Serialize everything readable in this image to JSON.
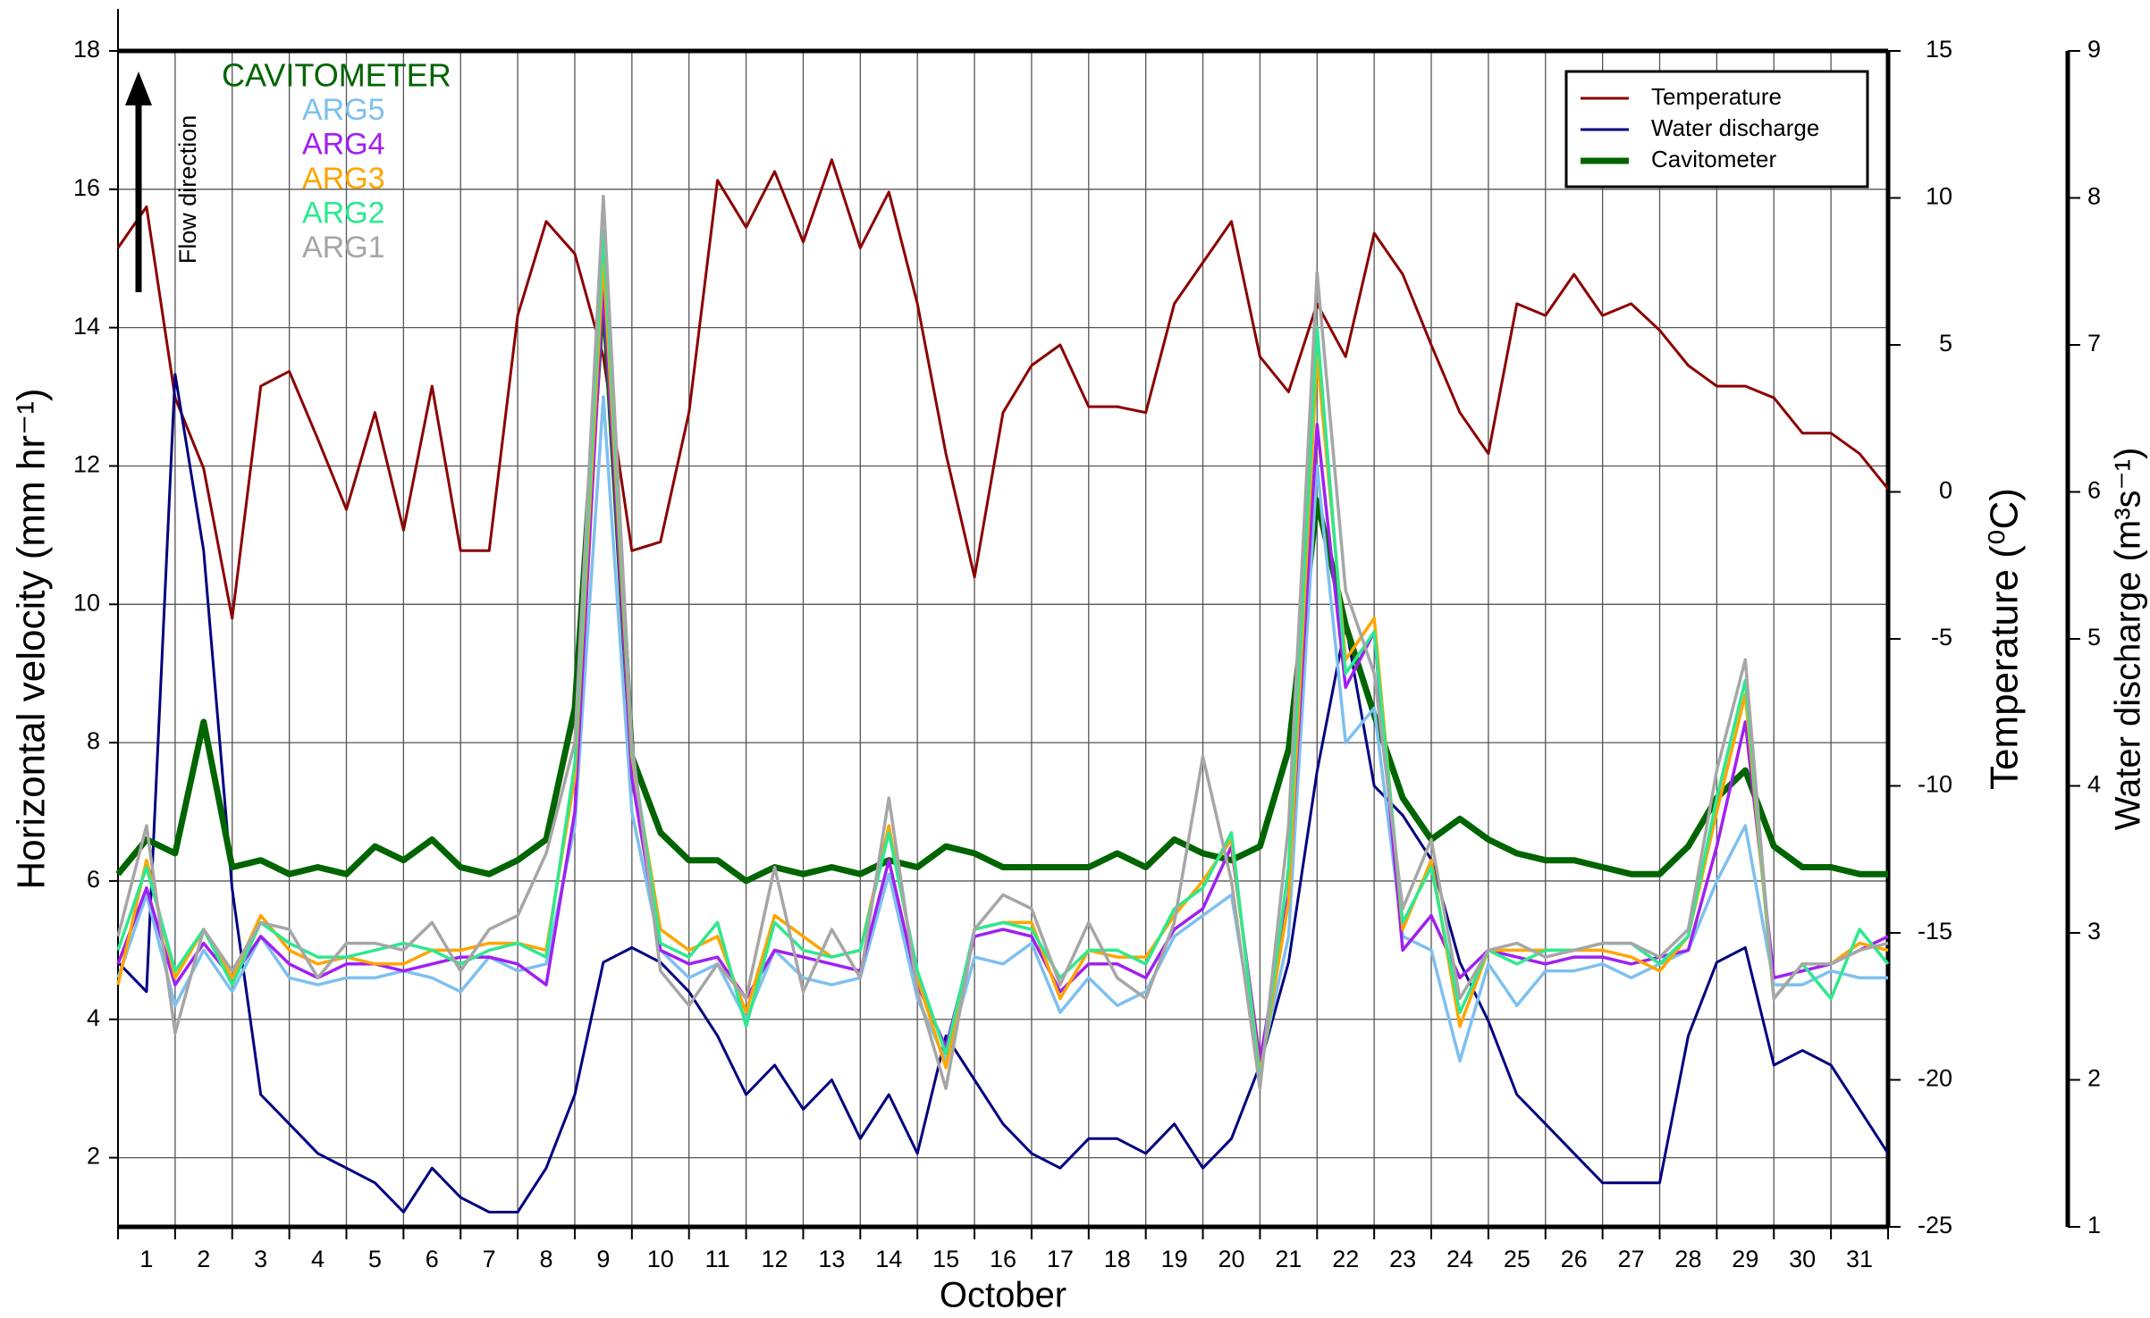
{
  "chart_data": {
    "type": "line",
    "x_label": "October",
    "y_label": "Horizontal velocity (mm hr⁻¹)",
    "y2_label": "Temperature (⁰C)",
    "y3_label": "Water discharge (m³s⁻¹)",
    "flow_label": "Flow direction",
    "label_series_title": "CAVITOMETER",
    "label_series_title_color": "#006400",
    "grid": true,
    "legend": "upper right",
    "xlim": [
      1,
      32
    ],
    "xgrid": [
      1,
      2,
      3,
      4,
      5,
      6,
      7,
      8,
      9,
      10,
      11,
      12,
      13,
      14,
      15,
      16,
      17,
      18,
      19,
      20,
      21,
      22,
      23,
      24,
      25,
      26,
      27,
      28,
      29,
      30,
      31,
      32
    ],
    "xticks": [
      {
        "value": 1.5,
        "label": "1"
      },
      {
        "value": 2.5,
        "label": "2"
      },
      {
        "value": 3.5,
        "label": "3"
      },
      {
        "value": 4.5,
        "label": "4"
      },
      {
        "value": 5.5,
        "label": "5"
      },
      {
        "value": 6.5,
        "label": "6"
      },
      {
        "value": 7.5,
        "label": "7"
      },
      {
        "value": 8.5,
        "label": "8"
      },
      {
        "value": 9.5,
        "label": "9"
      },
      {
        "value": 10.5,
        "label": "10"
      },
      {
        "value": 11.5,
        "label": "11"
      },
      {
        "value": 12.5,
        "label": "12"
      },
      {
        "value": 13.5,
        "label": "13"
      },
      {
        "value": 14.5,
        "label": "14"
      },
      {
        "value": 15.5,
        "label": "15"
      },
      {
        "value": 16.5,
        "label": "16"
      },
      {
        "value": 17.5,
        "label": "17"
      },
      {
        "value": 18.5,
        "label": "18"
      },
      {
        "value": 19.5,
        "label": "19"
      },
      {
        "value": 20.5,
        "label": "20"
      },
      {
        "value": 21.5,
        "label": "21"
      },
      {
        "value": 22.5,
        "label": "22"
      },
      {
        "value": 23.5,
        "label": "23"
      },
      {
        "value": 24.5,
        "label": "24"
      },
      {
        "value": 25.5,
        "label": "25"
      },
      {
        "value": 26.5,
        "label": "26"
      },
      {
        "value": 27.5,
        "label": "27"
      },
      {
        "value": 28.5,
        "label": "28"
      },
      {
        "value": 29.5,
        "label": "29"
      },
      {
        "value": 30.5,
        "label": "30"
      },
      {
        "value": 31.5,
        "label": "31"
      }
    ],
    "ylim": [
      1,
      18
    ],
    "yticks": [
      2,
      4,
      6,
      8,
      10,
      12,
      14,
      16,
      18
    ],
    "y2lim": [
      -25,
      15
    ],
    "y2ticks": [
      -25,
      -20,
      -15,
      -10,
      -5,
      0,
      5,
      10,
      15
    ],
    "y3lim": [
      1,
      9
    ],
    "y3ticks": [
      1,
      2,
      3,
      4,
      5,
      6,
      7,
      8,
      9
    ],
    "x": [
      1,
      1.5,
      2,
      2.5,
      3,
      3.5,
      4,
      4.5,
      5,
      5.5,
      6,
      6.5,
      7,
      7.5,
      8,
      8.5,
      9,
      9.5,
      10,
      10.5,
      11,
      11.5,
      12,
      12.5,
      13,
      13.5,
      14,
      14.5,
      15,
      15.5,
      16,
      16.5,
      17,
      17.5,
      18,
      18.5,
      19,
      19.5,
      20,
      20.5,
      21,
      21.5,
      22,
      22.5,
      23,
      23.5,
      24,
      24.5,
      25,
      25.5,
      26,
      26.5,
      27,
      27.5,
      28,
      28.5,
      29,
      29.5,
      30,
      30.5,
      31,
      31.5,
      32
    ],
    "series": [
      {
        "name": "Temperature",
        "color": "#8b0000",
        "axis": "y2",
        "values": [
          8.3,
          9.7,
          3.2,
          0.8,
          -4.3,
          3.6,
          4.1,
          1.8,
          -0.6,
          2.7,
          -1.3,
          3.6,
          -2.0,
          -2.0,
          6.0,
          9.2,
          8.1,
          4.6,
          -2.0,
          -1.7,
          2.7,
          10.6,
          9.0,
          10.9,
          8.5,
          11.3,
          8.3,
          10.2,
          6.4,
          1.3,
          -2.9,
          2.7,
          4.3,
          5.0,
          2.9,
          2.9,
          2.7,
          6.4,
          7.8,
          9.2,
          4.6,
          3.4,
          6.4,
          4.6,
          8.8,
          7.4,
          5.0,
          2.7,
          1.3,
          6.4,
          6.0,
          7.4,
          6.0,
          6.4,
          5.5,
          4.3,
          3.6,
          3.6,
          3.2,
          2.0,
          2.0,
          1.3,
          0.1
        ]
      },
      {
        "name": "Water discharge",
        "color": "#000080",
        "axis": "y3",
        "values": [
          2.8,
          2.6,
          6.8,
          5.6,
          3.3,
          1.9,
          1.7,
          1.5,
          1.4,
          1.3,
          1.1,
          1.4,
          1.2,
          1.1,
          1.1,
          1.4,
          1.9,
          2.8,
          2.9,
          2.8,
          2.6,
          2.3,
          1.9,
          2.1,
          1.8,
          2.0,
          1.6,
          1.9,
          1.5,
          2.3,
          2.0,
          1.7,
          1.5,
          1.4,
          1.6,
          1.6,
          1.5,
          1.7,
          1.4,
          1.6,
          2.1,
          2.8,
          4.1,
          5.1,
          4.0,
          3.8,
          3.5,
          2.8,
          2.4,
          1.9,
          1.7,
          1.5,
          1.3,
          1.3,
          1.3,
          2.3,
          2.8,
          2.9,
          2.1,
          2.2,
          2.1,
          1.8,
          1.5
        ]
      },
      {
        "name": "Cavitometer",
        "color": "#006400",
        "values": [
          6.1,
          6.6,
          6.4,
          8.3,
          6.2,
          6.3,
          6.1,
          6.2,
          6.1,
          6.5,
          6.3,
          6.6,
          6.2,
          6.1,
          6.3,
          6.6,
          8.5,
          14.6,
          7.8,
          6.7,
          6.3,
          6.3,
          6.0,
          6.2,
          6.1,
          6.2,
          6.1,
          6.3,
          6.2,
          6.5,
          6.4,
          6.2,
          6.2,
          6.2,
          6.2,
          6.4,
          6.2,
          6.6,
          6.4,
          6.3,
          6.5,
          7.9,
          11.5,
          9.7,
          8.4,
          7.2,
          6.6,
          6.9,
          6.6,
          6.4,
          6.3,
          6.3,
          6.2,
          6.1,
          6.1,
          6.5,
          7.2,
          7.6,
          6.5,
          6.2,
          6.2,
          6.1,
          6.1
        ]
      }
    ],
    "label_series": [
      {
        "name": "ARG5",
        "color": "#7ec0ee",
        "values": [
          4.6,
          5.8,
          4.2,
          5.0,
          4.4,
          5.2,
          4.6,
          4.5,
          4.6,
          4.6,
          4.7,
          4.6,
          4.4,
          4.9,
          4.7,
          4.8,
          6.8,
          13.0,
          7.0,
          5.0,
          4.6,
          4.8,
          4.0,
          5.0,
          4.6,
          4.5,
          4.6,
          6.1,
          4.3,
          3.4,
          4.9,
          4.8,
          5.1,
          4.1,
          4.6,
          4.2,
          4.4,
          5.2,
          5.5,
          5.8,
          3.3,
          5.2,
          12.0,
          8.0,
          8.5,
          5.2,
          5.0,
          3.4,
          4.8,
          4.2,
          4.7,
          4.7,
          4.8,
          4.6,
          4.8,
          5.0,
          6.0,
          6.8,
          4.5,
          4.5,
          4.7,
          4.6,
          4.6
        ]
      },
      {
        "name": "ARG4",
        "color": "#a020f0",
        "values": [
          4.8,
          5.9,
          4.5,
          5.1,
          4.6,
          5.2,
          4.8,
          4.6,
          4.8,
          4.8,
          4.7,
          4.8,
          4.9,
          4.9,
          4.8,
          4.5,
          7.0,
          14.6,
          7.5,
          5.0,
          4.8,
          4.9,
          4.3,
          5.0,
          4.9,
          4.8,
          4.7,
          6.3,
          4.5,
          3.6,
          5.2,
          5.3,
          5.2,
          4.4,
          4.8,
          4.8,
          4.6,
          5.3,
          5.6,
          6.5,
          3.4,
          5.8,
          12.6,
          8.8,
          9.6,
          5.0,
          5.5,
          4.6,
          5.0,
          4.9,
          4.8,
          4.9,
          4.9,
          4.8,
          4.9,
          5.0,
          6.5,
          8.3,
          4.6,
          4.7,
          4.8,
          5.0,
          5.2
        ]
      },
      {
        "name": "ARG3",
        "color": "#ffa500",
        "values": [
          4.5,
          6.3,
          4.6,
          5.3,
          4.6,
          5.5,
          5.0,
          4.8,
          4.9,
          4.8,
          4.8,
          5.0,
          5.0,
          5.1,
          5.1,
          5.0,
          7.5,
          15.0,
          7.8,
          5.3,
          5.0,
          5.2,
          4.1,
          5.5,
          5.2,
          4.9,
          5.0,
          6.8,
          4.6,
          3.3,
          5.3,
          5.4,
          5.4,
          4.3,
          5.0,
          4.9,
          4.9,
          5.5,
          6.0,
          6.6,
          3.2,
          5.7,
          13.6,
          9.2,
          9.8,
          5.3,
          6.3,
          3.9,
          5.0,
          5.0,
          5.0,
          5.0,
          5.0,
          4.9,
          4.7,
          5.2,
          7.0,
          8.7,
          4.3,
          4.8,
          4.8,
          5.1,
          5.0
        ]
      },
      {
        "name": "ARG2",
        "color": "#2ee88f",
        "values": [
          5.0,
          6.2,
          4.7,
          5.3,
          4.5,
          5.4,
          5.1,
          4.9,
          4.9,
          5.0,
          5.1,
          5.0,
          4.8,
          5.0,
          5.1,
          4.9,
          7.7,
          15.4,
          7.9,
          5.1,
          4.9,
          5.4,
          3.9,
          5.4,
          5.0,
          4.9,
          5.0,
          6.7,
          4.7,
          3.5,
          5.3,
          5.4,
          5.3,
          4.6,
          5.0,
          5.0,
          4.8,
          5.6,
          5.9,
          6.7,
          3.1,
          6.2,
          14.0,
          9.0,
          9.6,
          5.4,
          6.2,
          4.1,
          5.0,
          4.8,
          5.0,
          5.0,
          5.1,
          5.1,
          4.8,
          5.2,
          7.2,
          8.9,
          4.3,
          4.8,
          4.3,
          5.3,
          4.8
        ]
      },
      {
        "name": "ARG1",
        "color": "#a6a6a6",
        "values": [
          5.2,
          6.8,
          3.8,
          5.3,
          4.7,
          5.4,
          5.3,
          4.6,
          5.1,
          5.1,
          5.0,
          5.4,
          4.7,
          5.3,
          5.5,
          6.4,
          8.0,
          15.9,
          8.0,
          4.7,
          4.2,
          4.8,
          4.3,
          6.2,
          4.4,
          5.3,
          4.6,
          7.2,
          4.4,
          3.0,
          5.3,
          5.8,
          5.6,
          4.5,
          5.4,
          4.6,
          4.3,
          5.4,
          7.8,
          6.0,
          3.0,
          6.8,
          14.8,
          10.2,
          9.0,
          5.6,
          6.6,
          4.3,
          5.0,
          5.1,
          4.9,
          5.0,
          5.1,
          5.1,
          4.9,
          5.3,
          7.6,
          9.2,
          4.3,
          4.8,
          4.8,
          5.0,
          5.1
        ]
      }
    ]
  }
}
